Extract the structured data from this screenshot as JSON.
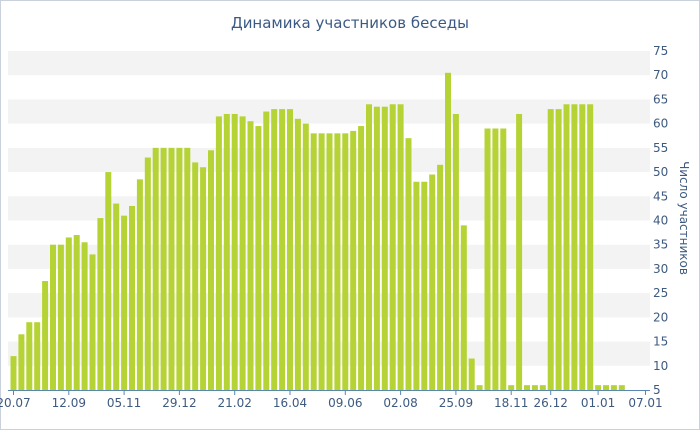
{
  "chart_data": {
    "type": "bar",
    "title": "Динамика участников беседы",
    "ylabel": "Число участников",
    "xlabel": "",
    "ylim": [
      5,
      75
    ],
    "yticks": [
      5,
      10,
      15,
      20,
      25,
      30,
      35,
      40,
      45,
      50,
      55,
      60,
      65,
      70,
      75
    ],
    "y_axis_position": "right",
    "grid": "alternating horizontal bands",
    "bar_color": "#b5d334",
    "x_tick_labels": [
      {
        "label": "20.07",
        "index": 0
      },
      {
        "label": "12.09",
        "index": 7
      },
      {
        "label": "05.11",
        "index": 14
      },
      {
        "label": "29.12",
        "index": 21
      },
      {
        "label": "21.02",
        "index": 28
      },
      {
        "label": "16.04",
        "index": 35
      },
      {
        "label": "09.06",
        "index": 42
      },
      {
        "label": "02.08",
        "index": 49
      },
      {
        "label": "25.09",
        "index": 56
      },
      {
        "label": "18.11",
        "index": 63
      },
      {
        "label": "26.12",
        "index": 68
      },
      {
        "label": "01.01",
        "index": 74
      },
      {
        "label": "07.01",
        "index": 80
      }
    ],
    "values": [
      12,
      16.5,
      19,
      19,
      27.5,
      35,
      35,
      36.5,
      37,
      35.5,
      33,
      40.5,
      50,
      43.5,
      41,
      43,
      48.5,
      53,
      55,
      55,
      55,
      55,
      55,
      52,
      51,
      54.5,
      61.5,
      62,
      62,
      61.5,
      60.5,
      59.5,
      62.5,
      63,
      63,
      63,
      61,
      60,
      58,
      58,
      58,
      58,
      58,
      58.5,
      59.5,
      64,
      63.5,
      63.5,
      64,
      64,
      57,
      48,
      48,
      49.5,
      51.5,
      70.5,
      62,
      39,
      11.5,
      6,
      59,
      59,
      59,
      6,
      62,
      6,
      6,
      6,
      63,
      63,
      64,
      64,
      64,
      64,
      6,
      6,
      6,
      6
    ]
  }
}
